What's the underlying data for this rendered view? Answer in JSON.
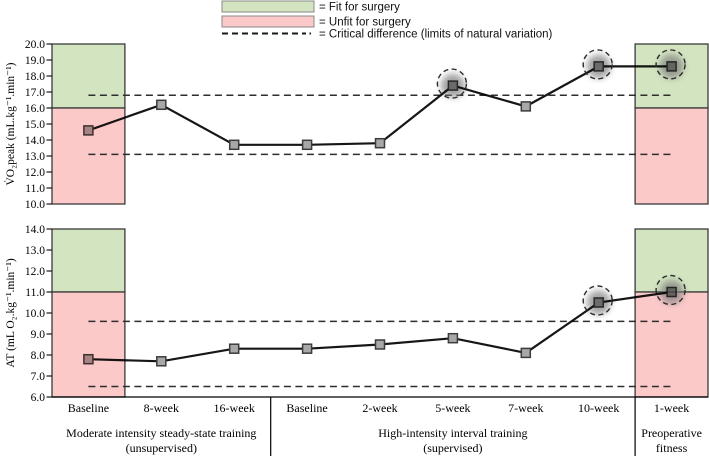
{
  "legend": {
    "items": [
      {
        "swatch": "green-box",
        "label": "= Fit for surgery"
      },
      {
        "swatch": "pink-box",
        "label": "= Unfit for surgery"
      },
      {
        "swatch": "dashed-line",
        "label": "= Critical difference (limits of natural variation)"
      }
    ]
  },
  "colors": {
    "fit": "#d3e4c1",
    "unfit": "#fcc9c9",
    "marker": "#a8a8a8",
    "marker_edge": "#3c3c3c",
    "line": "#161616"
  },
  "groups": [
    {
      "lines": [
        "Moderate intensity steady-state training",
        "(unsupervised)"
      ],
      "span": [
        0,
        3
      ]
    },
    {
      "lines": [
        "High-intensity interval training",
        "(supervised)"
      ],
      "span": [
        3,
        8
      ]
    },
    {
      "lines": [
        "Preoperative",
        "fitness"
      ],
      "span": [
        8,
        9
      ]
    }
  ],
  "chart_data": [
    {
      "type": "line",
      "ylabel": "V̇O₂peak (mL.kg⁻¹.min⁻¹)",
      "ylim": [
        10,
        20
      ],
      "ytick_step": 1.0,
      "categories": [
        "Baseline",
        "8-week",
        "16-week",
        "Baseline",
        "2-week",
        "5-week",
        "7-week",
        "10-week",
        "1-week"
      ],
      "values": [
        14.6,
        16.2,
        13.7,
        13.7,
        13.8,
        17.4,
        16.1,
        18.6,
        18.6
      ],
      "critical_difference_lines": [
        16.8,
        13.1
      ],
      "zones": {
        "fit": {
          "range": [
            16.0,
            20.0
          ],
          "label": "Fit for surgery"
        },
        "unfit": {
          "range": [
            10.0,
            16.0
          ],
          "label": "Unfit for surgery"
        }
      },
      "highlighted_indices": [
        5,
        7,
        8
      ],
      "grid": false,
      "legend_position": "top-center"
    },
    {
      "type": "line",
      "ylabel": "AT (mL O₂.kg⁻¹.min⁻¹)",
      "ylim": [
        6,
        14
      ],
      "ytick_step": 1.0,
      "categories": [
        "Baseline",
        "8-week",
        "16-week",
        "Baseline",
        "2-week",
        "5-week",
        "7-week",
        "10-week",
        "1-week"
      ],
      "values": [
        7.8,
        7.7,
        8.3,
        8.3,
        8.5,
        8.8,
        8.1,
        10.5,
        11.0
      ],
      "critical_difference_lines": [
        9.6,
        6.5
      ],
      "zones": {
        "fit": {
          "range": [
            11.0,
            14.0
          ],
          "label": "Fit for surgery"
        },
        "unfit": {
          "range": [
            6.0,
            11.0
          ],
          "label": "Unfit for surgery"
        }
      },
      "highlighted_indices": [
        7,
        8
      ],
      "grid": false,
      "legend_position": "top-center"
    }
  ]
}
